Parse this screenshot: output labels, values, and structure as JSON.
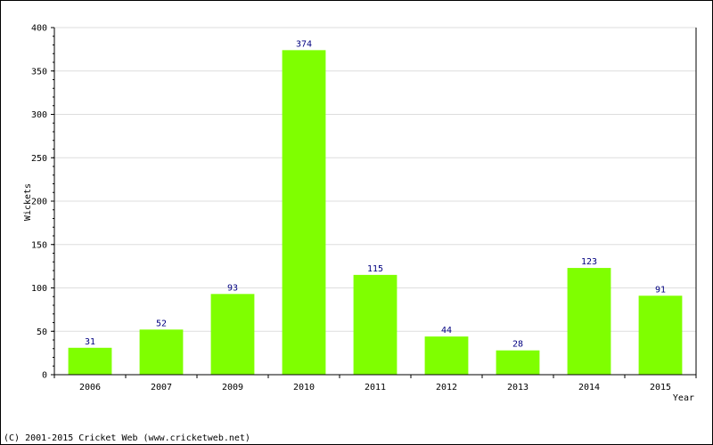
{
  "chart_data": {
    "type": "bar",
    "categories": [
      "2006",
      "2007",
      "2009",
      "2010",
      "2011",
      "2012",
      "2013",
      "2014",
      "2015"
    ],
    "values": [
      31,
      52,
      93,
      374,
      115,
      44,
      28,
      123,
      91
    ],
    "xlabel": "Year",
    "ylabel": "Wickets",
    "ylim": [
      0,
      400
    ],
    "yticks": [
      0,
      50,
      100,
      150,
      200,
      250,
      300,
      350,
      400
    ],
    "grid": true,
    "bar_color": "#7fff00",
    "data_label_color": "#000080"
  },
  "footer": {
    "copyright": "(C) 2001-2015 Cricket Web (www.cricketweb.net)"
  }
}
